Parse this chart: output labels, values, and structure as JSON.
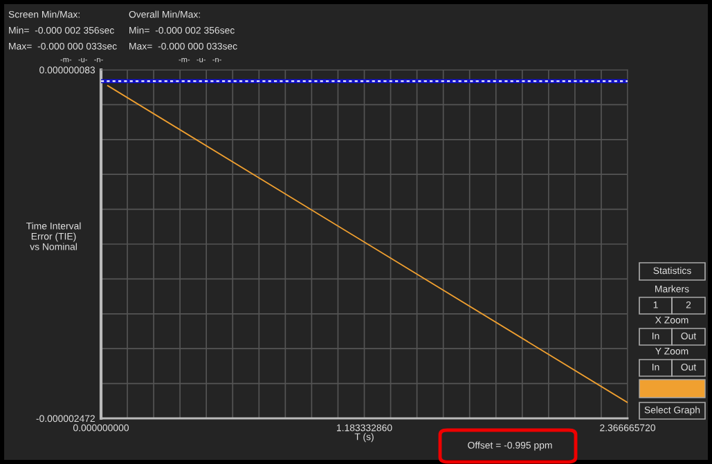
{
  "chart_data": {
    "type": "line",
    "xlabel": "T (s)",
    "ylabel": "Time Interval\nError (TIE)\nvs Nominal",
    "x": [
      0.03,
      2.36666572
    ],
    "series": [
      {
        "color": "#f0a030",
        "values": [
          -3.3e-08,
          -2.356e-06
        ]
      }
    ],
    "xlim": [
      0.0,
      2.36666572
    ],
    "xticks": [
      {
        "value": 0.0,
        "label": "0.000000000"
      },
      {
        "value": 0.118333286,
        "label": null
      },
      {
        "value": 0.236666572,
        "label": null
      },
      {
        "value": 0.354999858,
        "label": null
      },
      {
        "value": 0.473333144,
        "label": null
      },
      {
        "value": 0.59166643,
        "label": null
      },
      {
        "value": 0.709999716,
        "label": null
      },
      {
        "value": 0.828333002,
        "label": null
      },
      {
        "value": 0.946666288,
        "label": null
      },
      {
        "value": 1.064999574,
        "label": null
      },
      {
        "value": 1.18333286,
        "label": "1.183332860"
      },
      {
        "value": 1.301666146,
        "label": null
      },
      {
        "value": 1.419999432,
        "label": null
      },
      {
        "value": 1.538332718,
        "label": null
      },
      {
        "value": 1.656666004,
        "label": null
      },
      {
        "value": 1.77499929,
        "label": null
      },
      {
        "value": 1.893332576,
        "label": null
      },
      {
        "value": 2.011665862,
        "label": null
      },
      {
        "value": 2.129999148,
        "label": null
      },
      {
        "value": 2.248332434,
        "label": null
      },
      {
        "value": 2.36666572,
        "label": "2.366665720"
      }
    ],
    "ylim": [
      -2.472e-06,
      8.3e-08
    ],
    "yticks": [
      {
        "value": -2.472e-06,
        "label": "-0.000002472"
      },
      {
        "value": -2.2165e-06,
        "label": null
      },
      {
        "value": -1.961e-06,
        "label": null
      },
      {
        "value": -1.7055e-06,
        "label": null
      },
      {
        "value": -1.45e-06,
        "label": null
      },
      {
        "value": -1.1945e-06,
        "label": null
      },
      {
        "value": -9.39e-07,
        "label": null
      },
      {
        "value": -6.835e-07,
        "label": null
      },
      {
        "value": -4.28e-07,
        "label": null
      },
      {
        "value": -1.725e-07,
        "label": null
      },
      {
        "value": 8.3e-08,
        "label": "0.000000083"
      }
    ],
    "ref_lines": [
      {
        "axis": "y",
        "value": 0.0,
        "color": "#1010c8",
        "line_style": "solid"
      },
      {
        "axis": "y",
        "value": 0.0,
        "color": "#ffffff",
        "line_style": "dashed"
      }
    ],
    "grid": true,
    "annotations": [
      "Screen Min/Max:",
      "Overall Min/Max:",
      "Min=  -0.000 002 356sec",
      "Max=  -0.000 000 033sec",
      "Min=  -0.000 002 356sec",
      "Max=  -0.000 000 033sec",
      "-m-   -u-   -n-",
      "-m-   -u-   -n-",
      "Offset = -0.995 ppm",
      "Statistics",
      "Markers",
      "1",
      "2",
      "X Zoom",
      "In",
      "Out",
      "Y Zoom",
      "In",
      "Out",
      "Select Graph"
    ]
  }
}
